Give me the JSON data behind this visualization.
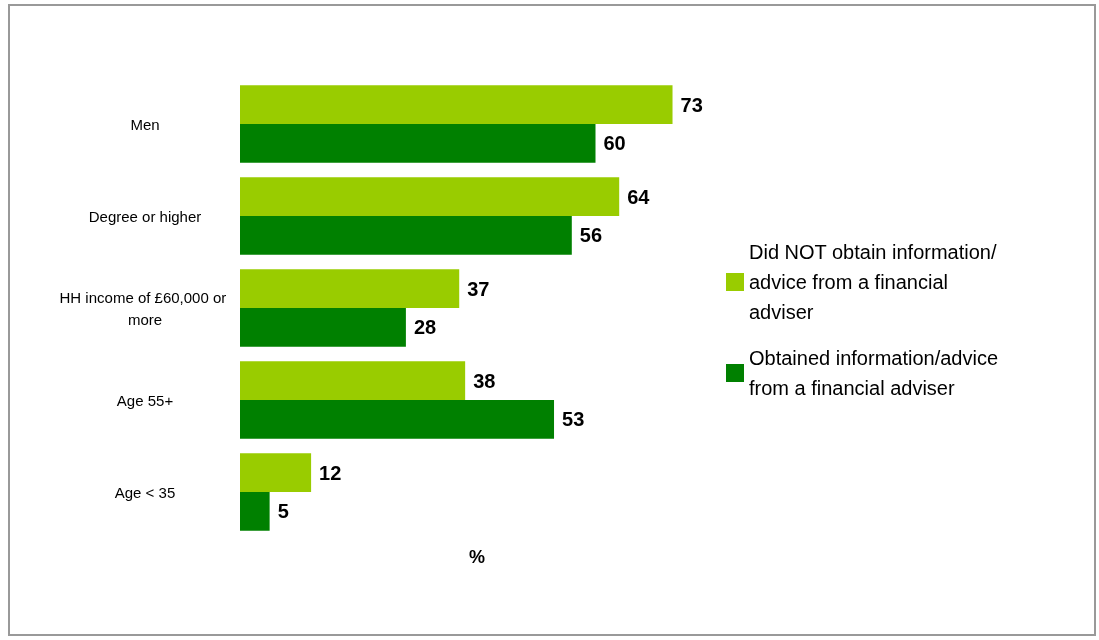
{
  "chart_data": {
    "type": "bar",
    "orientation": "horizontal",
    "xlabel": "%",
    "categories": [
      "Men",
      "Degree or higher",
      "HH income of £60,000 or more",
      "Age 55+",
      "Age < 35"
    ],
    "series": [
      {
        "name": "Did NOT obtain information/advice from a financial adviser",
        "color": "#99cc00",
        "values": [
          73,
          64,
          37,
          38,
          12
        ]
      },
      {
        "name": "Obtained information/advice from a financial adviser",
        "color": "#008000",
        "values": [
          60,
          56,
          28,
          53,
          5
        ]
      }
    ],
    "data_labels": true,
    "legend": "right",
    "grid": false
  }
}
